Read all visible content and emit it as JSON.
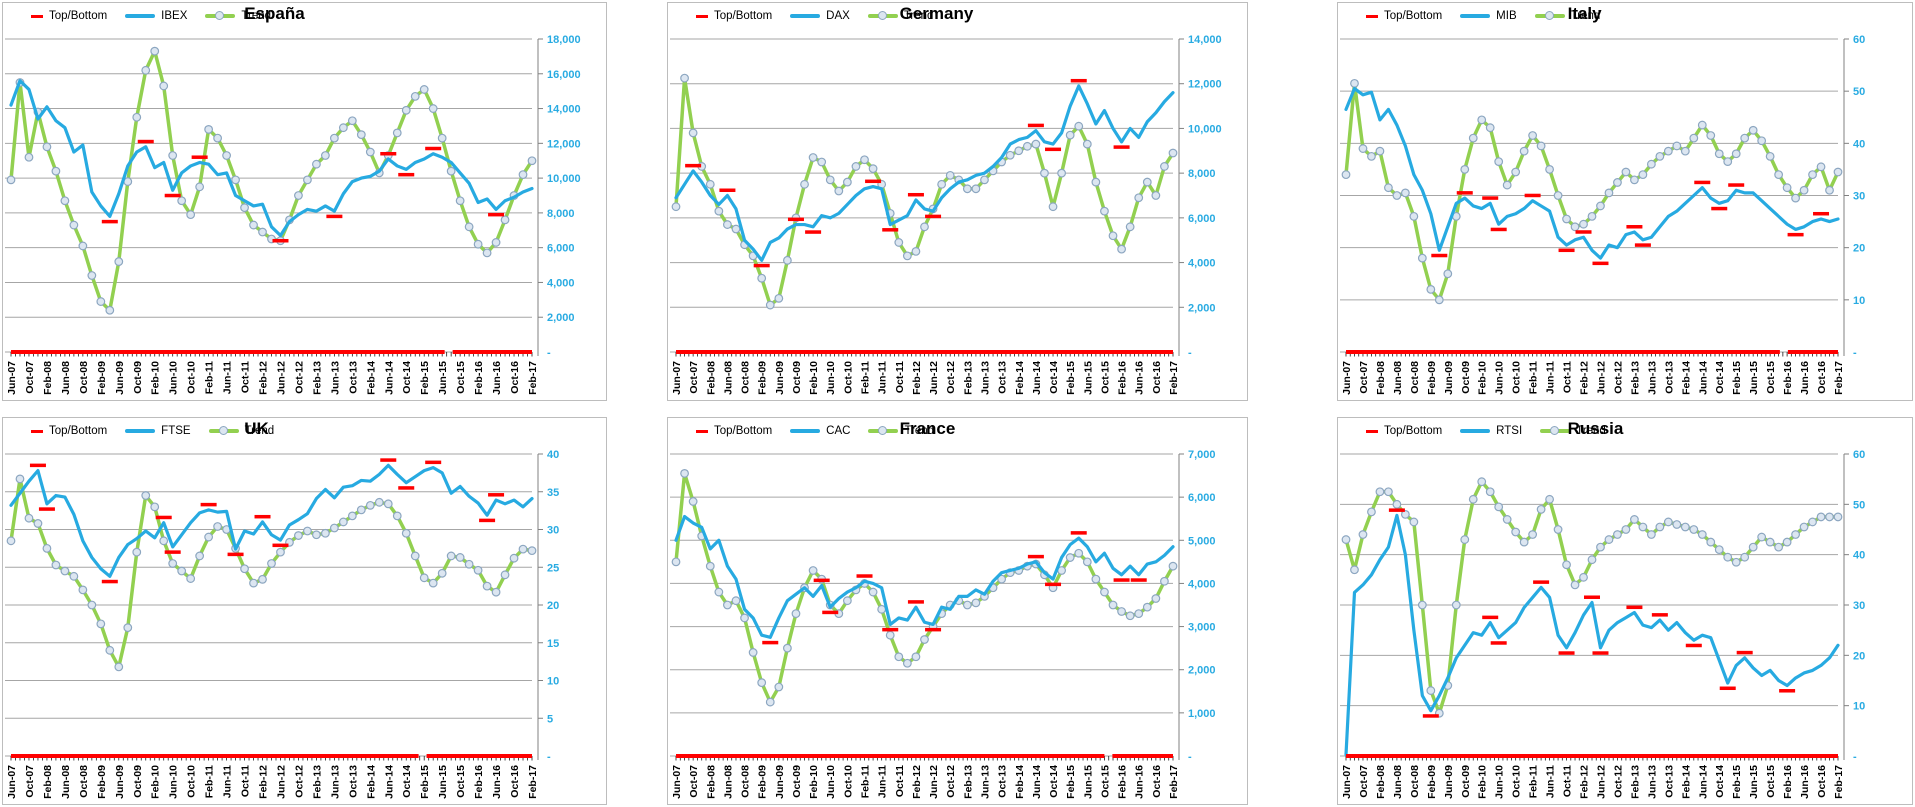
{
  "colors": {
    "index_line": "#27AAE1",
    "trend_line": "#92D050",
    "top_bottom": "#FF0000",
    "axis_label": "#29ABE2",
    "gridline": "#A6A6A6",
    "axis_line": "#808080",
    "marker_fill": "#DCE6F1",
    "marker_stroke": "#8CA6C0",
    "month_tick": "#1a1a1a"
  },
  "x_labels": [
    "Jun-07",
    "Oct-07",
    "Feb-08",
    "Jun-08",
    "Oct-08",
    "Feb-09",
    "Jun-09",
    "Oct-09",
    "Feb-10",
    "Jun-10",
    "Oct-10",
    "Feb-11",
    "Jun-11",
    "Oct-11",
    "Feb-12",
    "Jun-12",
    "Oct-12",
    "Feb-13",
    "Jun-13",
    "Oct-13",
    "Feb-14",
    "Jun-14",
    "Oct-14",
    "Feb-15",
    "Jun-15",
    "Oct-15",
    "Feb-16",
    "Jun-16",
    "Oct-16",
    "Feb-17"
  ],
  "months_span": 116,
  "series_month_step": 2,
  "chart_data": [
    {
      "type": "line",
      "title": "España",
      "index_name": "IBEX",
      "legend_top_bottom": "Top/Bottom",
      "legend_trend": "Trend",
      "legend_position": "top-left",
      "grid": true,
      "ylim": [
        0,
        18000
      ],
      "zero_tick_label": "-",
      "baseline_gap_frac": 0.84,
      "y_ticks": [
        {
          "value": 18000,
          "label": "18,000"
        },
        {
          "value": 16000,
          "label": "16,000"
        },
        {
          "value": 14000,
          "label": "14,000"
        },
        {
          "value": 12000,
          "label": "12,000"
        },
        {
          "value": 10000,
          "label": "10,000"
        },
        {
          "value": 8000,
          "label": "8,000"
        },
        {
          "value": 6000,
          "label": "6,000"
        },
        {
          "value": 4000,
          "label": "4,000"
        },
        {
          "value": 2000,
          "label": "2,000"
        }
      ],
      "series": [
        {
          "name": "IBEX",
          "role": "index",
          "values": [
            14200,
            15600,
            15100,
            13400,
            14100,
            13300,
            12900,
            11500,
            11900,
            9200,
            8400,
            7800,
            9100,
            10700,
            11500,
            11800,
            10600,
            10900,
            9300,
            10300,
            10700,
            10900,
            10800,
            10200,
            10300,
            9000,
            8700,
            8400,
            8500,
            7200,
            6700,
            7500,
            7900,
            8200,
            8100,
            8400,
            8100,
            9100,
            9800,
            10000,
            10100,
            10400,
            11100,
            10700,
            10500,
            10900,
            11100,
            11400,
            11200,
            10900,
            10300,
            9700,
            8600,
            8800,
            8200,
            8700,
            8900,
            9200,
            9400
          ]
        },
        {
          "name": "Trend",
          "role": "trend",
          "values": [
            9900,
            15500,
            11200,
            13800,
            11800,
            10400,
            8700,
            7300,
            6100,
            4400,
            2900,
            2400,
            5200,
            9800,
            13500,
            16200,
            17300,
            15300,
            11300,
            8700,
            7900,
            9500,
            12800,
            12300,
            11300,
            9900,
            8300,
            7300,
            6900,
            6500,
            6400,
            7600,
            9000,
            9900,
            10800,
            11300,
            12300,
            12900,
            13300,
            12500,
            11500,
            10300,
            11300,
            12600,
            13900,
            14700,
            15100,
            14000,
            12300,
            10400,
            8700,
            7200,
            6200,
            5700,
            6300,
            7600,
            9000,
            10200,
            11000
          ]
        }
      ]
    },
    {
      "type": "line",
      "title": "Germany",
      "index_name": "DAX",
      "legend_top_bottom": "Top/Bottom",
      "legend_trend": "Trend",
      "legend_position": "top-left",
      "grid": true,
      "ylim": [
        0,
        14000
      ],
      "zero_tick_label": "-",
      "baseline_gap_frac": null,
      "y_ticks": [
        {
          "value": 14000,
          "label": "14,000"
        },
        {
          "value": 12000,
          "label": "12,000"
        },
        {
          "value": 10000,
          "label": "10,000"
        },
        {
          "value": 8000,
          "label": "8,000"
        },
        {
          "value": 6000,
          "label": "6,000"
        },
        {
          "value": 4000,
          "label": "4,000"
        },
        {
          "value": 2000,
          "label": "2,000"
        }
      ],
      "series": [
        {
          "name": "DAX",
          "role": "index",
          "values": [
            6900,
            7500,
            8100,
            7600,
            7000,
            6600,
            7000,
            6400,
            5000,
            4600,
            4100,
            4900,
            5100,
            5500,
            5700,
            5700,
            5600,
            6100,
            6000,
            6200,
            6600,
            7000,
            7300,
            7400,
            7300,
            5700,
            5900,
            6100,
            6800,
            6400,
            6300,
            6900,
            7300,
            7600,
            7700,
            7900,
            8000,
            8300,
            8700,
            9300,
            9500,
            9600,
            9900,
            9400,
            9300,
            9800,
            11000,
            11900,
            11100,
            10200,
            10800,
            10000,
            9400,
            10000,
            9600,
            10300,
            10700,
            11200,
            11600
          ]
        },
        {
          "name": "Trend",
          "role": "trend",
          "values": [
            6500,
            12250,
            9800,
            8300,
            7500,
            6300,
            5700,
            5500,
            4800,
            4300,
            3300,
            2100,
            2400,
            4100,
            6000,
            7500,
            8700,
            8500,
            7700,
            7200,
            7600,
            8300,
            8600,
            8200,
            7500,
            6200,
            4900,
            4300,
            4500,
            5600,
            6400,
            7500,
            7900,
            7700,
            7300,
            7300,
            7700,
            8100,
            8500,
            8800,
            9000,
            9200,
            9300,
            8000,
            6500,
            8000,
            9700,
            10100,
            9300,
            7600,
            6300,
            5200,
            4600,
            5600,
            6900,
            7600,
            7000,
            8300,
            8900
          ]
        }
      ]
    },
    {
      "type": "line",
      "title": "Italy",
      "index_name": "MIB",
      "legend_top_bottom": "Top/Bottom",
      "legend_trend": "Trend",
      "legend_position": "top-left",
      "grid": true,
      "ylim": [
        0,
        60
      ],
      "zero_tick_label": "-",
      "baseline_gap_frac": 0.89,
      "y_ticks": [
        {
          "value": 60,
          "label": "60"
        },
        {
          "value": 50,
          "label": "50"
        },
        {
          "value": 40,
          "label": "40"
        },
        {
          "value": 30,
          "label": "30"
        },
        {
          "value": 20,
          "label": "20"
        },
        {
          "value": 10,
          "label": "10"
        }
      ],
      "series": [
        {
          "name": "MIB",
          "role": "index",
          "values": [
            46.5,
            50.5,
            49.3,
            49.8,
            44.5,
            46.5,
            43.5,
            39.5,
            34,
            31,
            26.5,
            19.5,
            24,
            28.5,
            29.5,
            28,
            27.5,
            28.5,
            24.5,
            26,
            26.5,
            27.5,
            29,
            28,
            27,
            22,
            20.5,
            21.5,
            22,
            19.5,
            18,
            20.5,
            20,
            22.5,
            23,
            21.5,
            22,
            24,
            26,
            27,
            28.5,
            30,
            31.5,
            29.5,
            28.5,
            29,
            31,
            30.5,
            30.5,
            29,
            27.5,
            26,
            24.5,
            23.5,
            24,
            25,
            25.5,
            25,
            25.5
          ]
        },
        {
          "name": "Trend",
          "role": "trend",
          "values": [
            34,
            51.5,
            39,
            37.5,
            38.5,
            31.5,
            30,
            30.5,
            26,
            18,
            12,
            10,
            15,
            26,
            35,
            41,
            44.5,
            43,
            36.5,
            32,
            34.5,
            38.5,
            41.5,
            39.5,
            35,
            30,
            25.5,
            24,
            24.5,
            26,
            28,
            30.5,
            32.5,
            34.5,
            33,
            34,
            36,
            37.5,
            38.5,
            39.5,
            38.5,
            41,
            43.5,
            41.5,
            38,
            36.5,
            38,
            41,
            42.5,
            40.5,
            37.5,
            34,
            31.5,
            29.5,
            31,
            34,
            35.5,
            31,
            34.5
          ]
        }
      ]
    },
    {
      "type": "line",
      "title": "UK",
      "index_name": "FTSE",
      "legend_top_bottom": "Top/Bottom",
      "legend_trend": "Trend",
      "legend_position": "top-left",
      "grid": true,
      "ylim": [
        0,
        40
      ],
      "zero_tick_label": "-",
      "baseline_gap_frac": 0.79,
      "y_ticks": [
        {
          "value": 40,
          "label": "40"
        },
        {
          "value": 35,
          "label": "35"
        },
        {
          "value": 30,
          "label": "30"
        },
        {
          "value": 25,
          "label": "25"
        },
        {
          "value": 20,
          "label": "20"
        },
        {
          "value": 15,
          "label": "15"
        },
        {
          "value": 10,
          "label": "10"
        },
        {
          "value": 5,
          "label": "5"
        }
      ],
      "series": [
        {
          "name": "FTSE",
          "role": "index",
          "values": [
            33.2,
            34.8,
            36.4,
            37.8,
            33.4,
            34.5,
            34.3,
            32,
            28.5,
            26.3,
            24.8,
            23.8,
            26.3,
            28,
            28.8,
            29.8,
            28.9,
            30.9,
            27.7,
            29.3,
            30.9,
            32.2,
            32.6,
            32.3,
            32.4,
            27.4,
            29.8,
            29.4,
            31,
            29.3,
            28.6,
            30.6,
            31.3,
            32.1,
            34.1,
            35.3,
            34.2,
            35.6,
            35.8,
            36.5,
            36.4,
            37.3,
            38.5,
            37.3,
            36.2,
            37,
            37.8,
            38.2,
            37.5,
            34.8,
            35.7,
            34.4,
            33.5,
            31.9,
            33.9,
            33.4,
            33.9,
            33,
            34.1
          ]
        },
        {
          "name": "Trend",
          "role": "trend",
          "values": [
            28.5,
            36.7,
            31.5,
            30.8,
            27.5,
            25.3,
            24.5,
            23.8,
            22,
            20,
            17.5,
            14,
            11.8,
            17,
            27,
            34.5,
            33,
            28.5,
            25.5,
            24.5,
            23.5,
            26.5,
            29,
            30.4,
            30,
            27.5,
            24.8,
            22.9,
            23.4,
            25.5,
            27,
            28.3,
            29.2,
            29.8,
            29.3,
            29.5,
            30.2,
            31,
            31.8,
            32.6,
            33.2,
            33.6,
            33.4,
            31.8,
            29.5,
            26.5,
            23.6,
            22.9,
            24.2,
            26.5,
            26.3,
            25.4,
            24.6,
            22.5,
            21.7,
            24,
            26.2,
            27.4,
            27.2
          ]
        }
      ]
    },
    {
      "type": "line",
      "title": "France",
      "index_name": "CAC",
      "legend_top_bottom": "Top/Bottom",
      "legend_trend": "Trend",
      "legend_position": "top-left",
      "grid": true,
      "ylim": [
        0,
        7000
      ],
      "zero_tick_label": "-",
      "baseline_gap_frac": 0.87,
      "y_ticks": [
        {
          "value": 7000,
          "label": "7,000"
        },
        {
          "value": 6000,
          "label": "6,000"
        },
        {
          "value": 5000,
          "label": "5,000"
        },
        {
          "value": 4000,
          "label": "4,000"
        },
        {
          "value": 3000,
          "label": "3,000"
        },
        {
          "value": 2000,
          "label": "2,000"
        },
        {
          "value": 1000,
          "label": "1,000"
        }
      ],
      "series": [
        {
          "name": "CAC",
          "role": "index",
          "values": [
            5000,
            5550,
            5400,
            5300,
            4800,
            5000,
            4400,
            4100,
            3400,
            3200,
            2800,
            2750,
            3200,
            3600,
            3750,
            3900,
            3700,
            3950,
            3450,
            3650,
            3800,
            3900,
            4050,
            4000,
            3900,
            3050,
            3200,
            3150,
            3450,
            3100,
            3050,
            3450,
            3400,
            3700,
            3700,
            3850,
            3750,
            4050,
            4250,
            4300,
            4350,
            4450,
            4500,
            4250,
            4100,
            4600,
            4900,
            5050,
            4850,
            4500,
            4700,
            4350,
            4200,
            4400,
            4200,
            4450,
            4500,
            4650,
            4850
          ]
        },
        {
          "name": "Trend",
          "role": "trend",
          "values": [
            4500,
            6550,
            5900,
            5100,
            4400,
            3800,
            3500,
            3600,
            3200,
            2400,
            1700,
            1250,
            1600,
            2500,
            3300,
            3900,
            4300,
            4100,
            3500,
            3300,
            3600,
            3850,
            4000,
            3800,
            3400,
            2800,
            2300,
            2150,
            2300,
            2700,
            3000,
            3300,
            3500,
            3600,
            3500,
            3550,
            3700,
            3900,
            4100,
            4250,
            4300,
            4400,
            4450,
            4200,
            3900,
            4300,
            4600,
            4700,
            4500,
            4100,
            3800,
            3500,
            3350,
            3250,
            3300,
            3450,
            3650,
            4050,
            4400
          ]
        }
      ]
    },
    {
      "type": "line",
      "title": "Russia",
      "index_name": "RTSI",
      "legend_top_bottom": "Top/Bottom",
      "legend_trend": "Trend",
      "legend_position": "top-left",
      "grid": true,
      "ylim": [
        0,
        60
      ],
      "zero_tick_label": "-",
      "baseline_gap_frac": null,
      "y_ticks": [
        {
          "value": 60,
          "label": "60"
        },
        {
          "value": 50,
          "label": "50"
        },
        {
          "value": 40,
          "label": "40"
        },
        {
          "value": 30,
          "label": "30"
        },
        {
          "value": 20,
          "label": "20"
        },
        {
          "value": 10,
          "label": "10"
        }
      ],
      "series": [
        {
          "name": "RTSI",
          "role": "index",
          "values": [
            0.3,
            32.5,
            34,
            36,
            39,
            41.5,
            47.8,
            40,
            25,
            12,
            9,
            12,
            15.5,
            19.5,
            22,
            24.5,
            24,
            26.5,
            23.5,
            25,
            26.5,
            29.5,
            31.5,
            33.5,
            31.5,
            24,
            21.5,
            24.5,
            28,
            30.5,
            21.5,
            25,
            26.5,
            27.5,
            28.5,
            26,
            25.5,
            27,
            25,
            26.5,
            24.5,
            23,
            24,
            23.5,
            19,
            14.5,
            18,
            19.5,
            17.5,
            16,
            17,
            15,
            14,
            15.5,
            16.5,
            17,
            18,
            19.5,
            22
          ]
        },
        {
          "name": "Trend",
          "role": "trend",
          "values": [
            43,
            37,
            44,
            48.5,
            52.5,
            52.5,
            50,
            48,
            46.5,
            30,
            13,
            8.5,
            14,
            30,
            43,
            51,
            54.5,
            52.5,
            49.5,
            47,
            44.5,
            42.5,
            44,
            49,
            51,
            45,
            38,
            34,
            35.5,
            39,
            41.5,
            43,
            44,
            45,
            47,
            45.5,
            44,
            45.5,
            46.5,
            46,
            45.5,
            45,
            44,
            42.5,
            41,
            39.5,
            38.5,
            39.5,
            41.5,
            43.5,
            42.5,
            41.5,
            42.5,
            44,
            45.5,
            46.5,
            47.5,
            47.5,
            47.5
          ]
        }
      ]
    }
  ]
}
